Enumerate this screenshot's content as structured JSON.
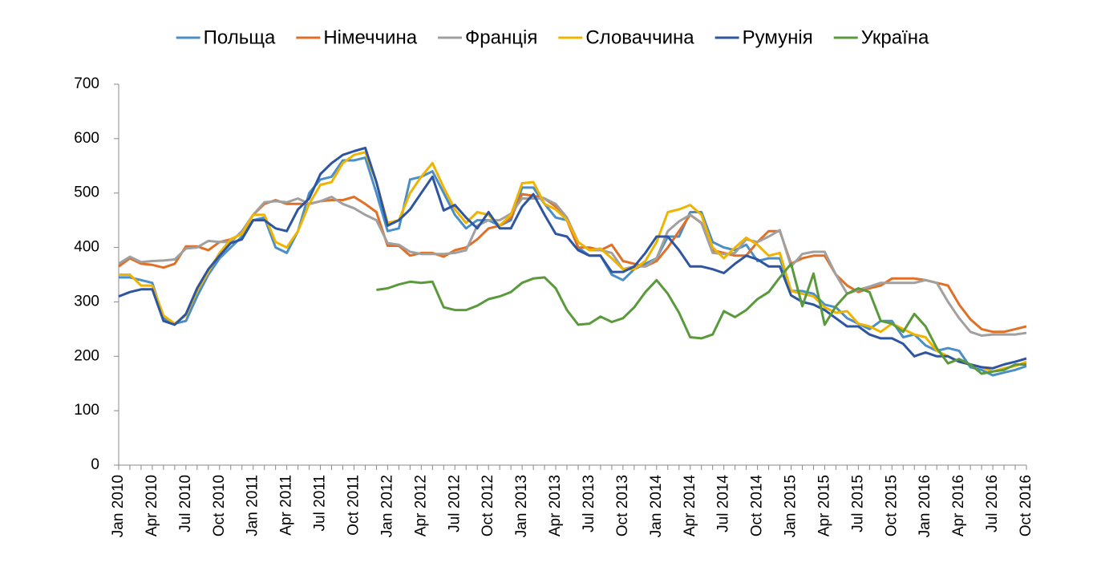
{
  "chart_data": {
    "type": "line",
    "categories": [
      "Jan 2010",
      null,
      null,
      "Apr 2010",
      null,
      null,
      "Jul 2010",
      null,
      null,
      "Oct 2010",
      null,
      null,
      "Jan 2011",
      null,
      null,
      "Apr 2011",
      null,
      null,
      "Jul 2011",
      null,
      null,
      "Oct 2011",
      null,
      null,
      "Jan 2012",
      null,
      null,
      "Apr 2012",
      null,
      null,
      "Jul 2012",
      null,
      null,
      "Oct 2012",
      null,
      null,
      "Jan 2013",
      null,
      null,
      "Apr 2013",
      null,
      null,
      "Jul 2013",
      null,
      null,
      "Oct 2013",
      null,
      null,
      "Jan 2014",
      null,
      null,
      "Apr 2014",
      null,
      null,
      "Jul 2014",
      null,
      null,
      "Oct 2014",
      null,
      null,
      "Jan 2015",
      null,
      null,
      "Apr 2015",
      null,
      null,
      "Jul 2015",
      null,
      null,
      "Oct 2015",
      null,
      null,
      "Jan 2016",
      null,
      null,
      "Apr 2016",
      null,
      null,
      "Jul 2016",
      null,
      null,
      "Oct 2016"
    ],
    "series": [
      {
        "name": "Польща",
        "color": "#4a8fc7",
        "values": [
          345,
          345,
          340,
          335,
          270,
          260,
          265,
          310,
          350,
          380,
          400,
          420,
          450,
          455,
          400,
          390,
          430,
          500,
          525,
          530,
          560,
          560,
          565,
          500,
          430,
          435,
          525,
          530,
          540,
          500,
          460,
          435,
          450,
          450,
          440,
          450,
          510,
          510,
          480,
          455,
          450,
          400,
          385,
          385,
          350,
          340,
          360,
          370,
          380,
          420,
          420,
          465,
          465,
          410,
          400,
          395,
          405,
          375,
          380,
          380,
          320,
          320,
          315,
          295,
          290,
          270,
          260,
          250,
          265,
          265,
          235,
          240,
          220,
          210,
          215,
          210,
          180,
          175,
          165,
          170,
          175,
          182
        ]
      },
      {
        "name": "Німеччина",
        "color": "#e07028",
        "values": [
          365,
          380,
          370,
          368,
          363,
          370,
          402,
          402,
          395,
          410,
          415,
          425,
          460,
          480,
          487,
          480,
          480,
          480,
          485,
          487,
          487,
          493,
          480,
          465,
          403,
          403,
          385,
          390,
          390,
          383,
          395,
          400,
          415,
          435,
          440,
          455,
          498,
          495,
          490,
          475,
          450,
          400,
          400,
          395,
          405,
          375,
          370,
          365,
          375,
          400,
          430,
          460,
          445,
          395,
          390,
          385,
          385,
          410,
          430,
          430,
          370,
          380,
          385,
          385,
          350,
          330,
          318,
          325,
          330,
          343,
          343,
          343,
          340,
          335,
          330,
          295,
          268,
          250,
          245,
          245,
          250,
          255
        ]
      },
      {
        "name": "Франція",
        "color": "#a0a0a0",
        "values": [
          370,
          383,
          373,
          375,
          376,
          378,
          398,
          400,
          412,
          410,
          410,
          430,
          460,
          483,
          485,
          483,
          490,
          480,
          485,
          493,
          480,
          472,
          460,
          450,
          408,
          405,
          392,
          388,
          388,
          388,
          390,
          395,
          440,
          450,
          450,
          462,
          490,
          490,
          490,
          480,
          455,
          410,
          395,
          395,
          390,
          360,
          365,
          365,
          380,
          430,
          448,
          460,
          445,
          390,
          388,
          390,
          415,
          410,
          420,
          432,
          365,
          388,
          392,
          392,
          350,
          315,
          322,
          328,
          335,
          335,
          335,
          335,
          340,
          335,
          300,
          270,
          245,
          238,
          240,
          240,
          240,
          243
        ]
      },
      {
        "name": "Словаччина",
        "color": "#f0b400",
        "values": [
          350,
          350,
          330,
          330,
          275,
          260,
          275,
          320,
          355,
          390,
          415,
          425,
          460,
          460,
          410,
          400,
          430,
          480,
          515,
          520,
          555,
          570,
          575,
          520,
          445,
          450,
          500,
          530,
          555,
          510,
          470,
          445,
          465,
          460,
          440,
          460,
          518,
          520,
          480,
          470,
          450,
          410,
          395,
          398,
          380,
          360,
          360,
          375,
          410,
          465,
          470,
          478,
          460,
          400,
          380,
          400,
          418,
          405,
          385,
          390,
          320,
          315,
          310,
          290,
          280,
          283,
          260,
          255,
          245,
          260,
          250,
          240,
          235,
          210,
          200,
          190,
          185,
          180,
          172,
          178,
          182,
          190
        ]
      },
      {
        "name": "Румунія",
        "color": "#2e55a0",
        "values": [
          310,
          318,
          323,
          323,
          265,
          258,
          278,
          325,
          360,
          385,
          408,
          415,
          450,
          450,
          435,
          430,
          470,
          490,
          535,
          555,
          570,
          577,
          583,
          520,
          440,
          450,
          470,
          500,
          530,
          468,
          478,
          455,
          435,
          465,
          435,
          435,
          475,
          498,
          460,
          425,
          420,
          395,
          385,
          385,
          355,
          355,
          365,
          390,
          420,
          420,
          395,
          365,
          365,
          360,
          353,
          370,
          385,
          378,
          365,
          365,
          312,
          300,
          295,
          285,
          270,
          255,
          255,
          240,
          233,
          233,
          223,
          200,
          207,
          200,
          200,
          190,
          185,
          180,
          178,
          185,
          190,
          196
        ]
      },
      {
        "name": "Україна",
        "color": "#5a9a3c",
        "values": [
          null,
          null,
          null,
          null,
          null,
          null,
          null,
          null,
          null,
          null,
          null,
          null,
          null,
          null,
          null,
          null,
          null,
          null,
          null,
          null,
          null,
          null,
          null,
          322,
          325,
          332,
          337,
          335,
          337,
          290,
          285,
          285,
          293,
          305,
          310,
          318,
          335,
          343,
          345,
          325,
          285,
          258,
          260,
          273,
          263,
          270,
          290,
          318,
          340,
          315,
          280,
          235,
          233,
          240,
          283,
          272,
          285,
          305,
          318,
          345,
          370,
          292,
          352,
          258,
          292,
          315,
          325,
          318,
          265,
          260,
          245,
          278,
          255,
          215,
          187,
          195,
          185,
          168,
          172,
          175,
          185,
          185
        ]
      }
    ],
    "ylim": [
      0,
      700
    ],
    "yticks": [
      0,
      100,
      200,
      300,
      400,
      500,
      600,
      700
    ],
    "legend": "top"
  }
}
